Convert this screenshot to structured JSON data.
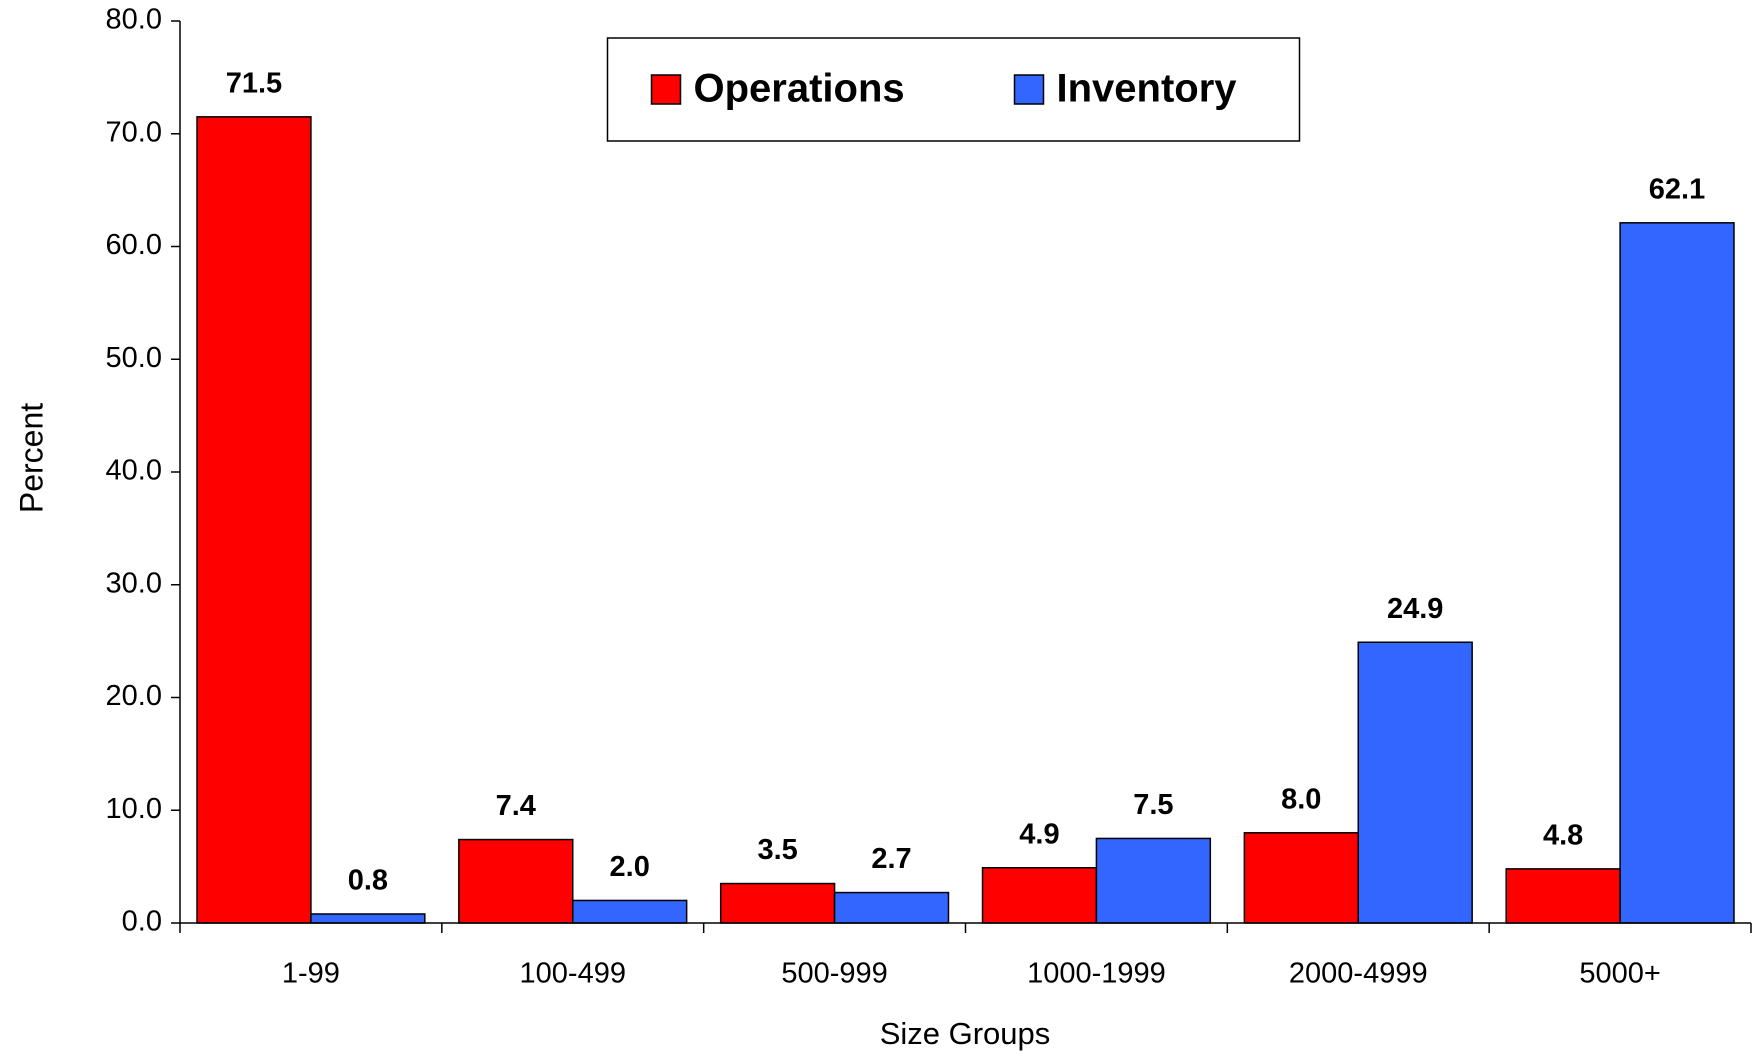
{
  "chart_data": {
    "type": "bar",
    "categories": [
      "1-99",
      "100-499",
      "500-999",
      "1000-1999",
      "2000-4999",
      "5000+"
    ],
    "series": [
      {
        "name": "Operations",
        "color": "#ff0000",
        "values": [
          71.5,
          7.4,
          3.5,
          4.9,
          8.0,
          4.8
        ],
        "value_labels": [
          "71.5",
          "7.4",
          "3.5",
          "4.9",
          "8.0",
          "4.8"
        ]
      },
      {
        "name": "Inventory",
        "color": "#3366ff",
        "values": [
          0.8,
          2.0,
          2.7,
          7.5,
          24.9,
          62.1
        ],
        "value_labels": [
          "0.8",
          "2.0",
          "2.7",
          "7.5",
          "24.9",
          "62.1"
        ]
      }
    ],
    "xlabel": "Size Groups",
    "ylabel": "Percent",
    "ylim": [
      0,
      80
    ],
    "yticks": [
      {
        "value": 0,
        "label": "0.0"
      },
      {
        "value": 10,
        "label": "10.0"
      },
      {
        "value": 20,
        "label": "20.0"
      },
      {
        "value": 30,
        "label": "30.0"
      },
      {
        "value": 40,
        "label": "40.0"
      },
      {
        "value": 50,
        "label": "50.0"
      },
      {
        "value": 60,
        "label": "60.0"
      },
      {
        "value": 70,
        "label": "70.0"
      },
      {
        "value": 80,
        "label": "80.0"
      }
    ],
    "grid": false,
    "legend": "upper center"
  }
}
